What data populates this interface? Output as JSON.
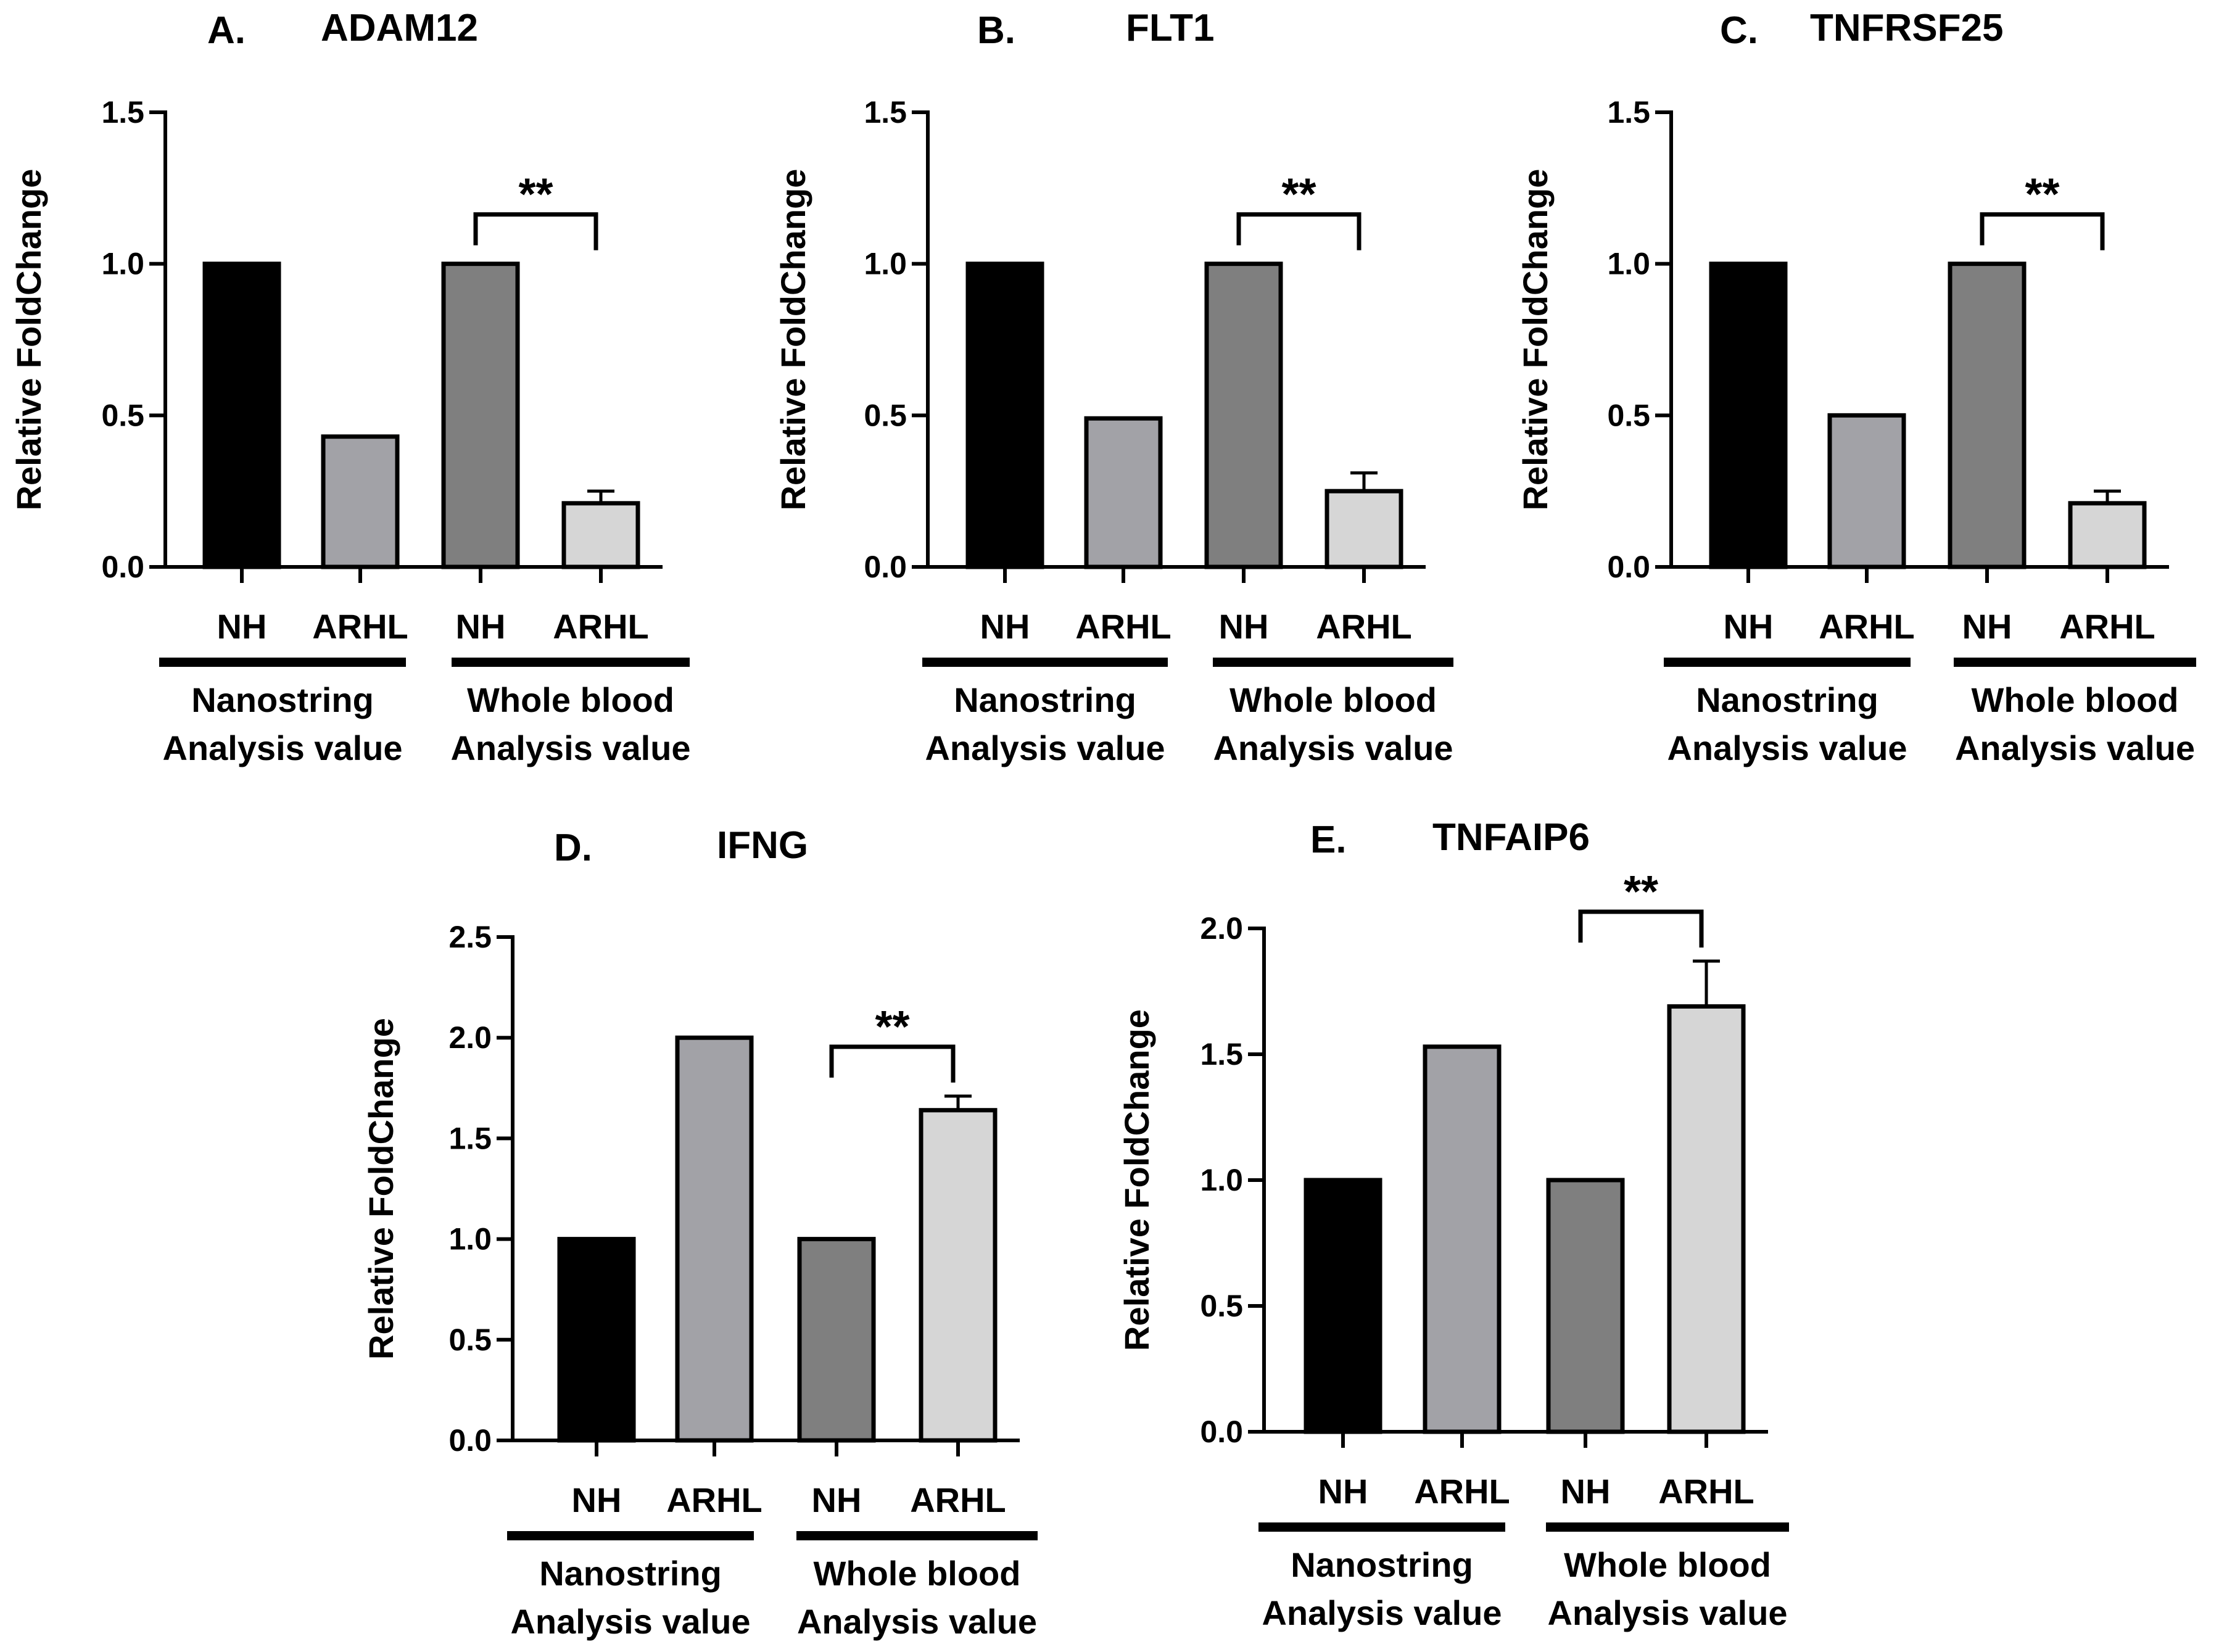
{
  "colors": {
    "nh_nanostring": "#000000",
    "arhl_nanostring": "#a2a2a7",
    "nh_whole_blood": "#7f7f7f",
    "arhl_whole_blood": "#d6d6d6",
    "axis": "#000000",
    "background": "#ffffff"
  },
  "chart_data": [
    {
      "type": "bar",
      "panel": "A.",
      "title": "ADAM12",
      "ylabel": "Relative FoldChange",
      "ylim": [
        0,
        1.5
      ],
      "yticks": [
        "0.0",
        "0.5",
        "1.0",
        "1.5"
      ],
      "categories": [
        "NH",
        "ARHL",
        "NH",
        "ARHL"
      ],
      "values": [
        1.0,
        0.43,
        1.0,
        0.21
      ],
      "errors": [
        0,
        0,
        0,
        0.04
      ],
      "groups": [
        {
          "line1": "Nanostring",
          "line2": "Analysis  value"
        },
        {
          "line1": "Whole blood",
          "line2": "Analysis  value"
        }
      ],
      "significance": "**"
    },
    {
      "type": "bar",
      "panel": "B.",
      "title": "FLT1",
      "ylabel": "Relative FoldChange",
      "ylim": [
        0,
        1.5
      ],
      "yticks": [
        "0.0",
        "0.5",
        "1.0",
        "1.5"
      ],
      "categories": [
        "NH",
        "ARHL",
        "NH",
        "ARHL"
      ],
      "values": [
        1.0,
        0.49,
        1.0,
        0.25
      ],
      "errors": [
        0,
        0,
        0,
        0.06
      ],
      "groups": [
        {
          "line1": "Nanostring",
          "line2": "Analysis  value"
        },
        {
          "line1": "Whole blood",
          "line2": "Analysis  value"
        }
      ],
      "significance": "**"
    },
    {
      "type": "bar",
      "panel": "C.",
      "title": "TNFRSF25",
      "ylabel": "Relative FoldChange",
      "ylim": [
        0,
        1.5
      ],
      "yticks": [
        "0.0",
        "0.5",
        "1.0",
        "1.5"
      ],
      "categories": [
        "NH",
        "ARHL",
        "NH",
        "ARHL"
      ],
      "values": [
        1.0,
        0.5,
        1.0,
        0.21
      ],
      "errors": [
        0,
        0,
        0,
        0.04
      ],
      "groups": [
        {
          "line1": "Nanostring",
          "line2": "Analysis  value"
        },
        {
          "line1": "Whole blood",
          "line2": "Analysis  value"
        }
      ],
      "significance": "**"
    },
    {
      "type": "bar",
      "panel": "D.",
      "title": "IFNG",
      "ylabel": "Relative FoldChange",
      "ylim": [
        0,
        2.5
      ],
      "yticks": [
        "0.0",
        "0.5",
        "1.0",
        "1.5",
        "2.0",
        "2.5"
      ],
      "categories": [
        "NH",
        "ARHL",
        "NH",
        "ARHL"
      ],
      "values": [
        1.0,
        2.0,
        1.0,
        1.64
      ],
      "errors": [
        0,
        0,
        0,
        0.07
      ],
      "groups": [
        {
          "line1": "Nanostring",
          "line2": "Analysis  value"
        },
        {
          "line1": "Whole blood",
          "line2": "Analysis  value"
        }
      ],
      "significance": "**"
    },
    {
      "type": "bar",
      "panel": "E.",
      "title": "TNFAIP6",
      "ylabel": "Relative FoldChange",
      "ylim": [
        0,
        2.0
      ],
      "yticks": [
        "0.0",
        "0.5",
        "1.0",
        "1.5",
        "2.0"
      ],
      "categories": [
        "NH",
        "ARHL",
        "NH",
        "ARHL"
      ],
      "values": [
        1.0,
        1.53,
        1.0,
        1.69
      ],
      "errors": [
        0,
        0,
        0,
        0.18
      ],
      "groups": [
        {
          "line1": "Nanostring",
          "line2": "Analysis  value"
        },
        {
          "line1": "Whole blood",
          "line2": "Analysis  value"
        }
      ],
      "significance": "**"
    }
  ]
}
